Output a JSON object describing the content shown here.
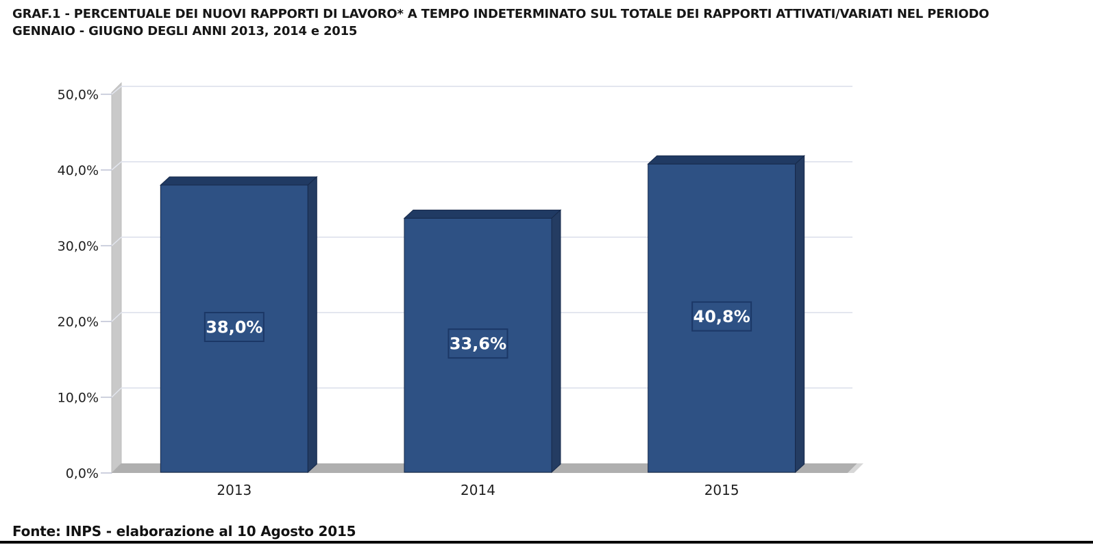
{
  "title": {
    "line1": "GRAF.1 - PERCENTUALE DEI NUOVI RAPPORTI DI LAVORO* A TEMPO INDETERMINATO SUL TOTALE DEI RAPPORTI ATTIVATI/VARIATI NEL PERIODO",
    "line2": "GENNAIO - GIUGNO  DEGLI ANNI 2013, 2014 e 2015"
  },
  "footer": {
    "source": "Fonte: INPS - elaborazione al 10 Agosto 2015"
  },
  "chart_data": {
    "type": "bar",
    "style": "3d-column",
    "categories": [
      "2013",
      "2014",
      "2015"
    ],
    "values": [
      38.0,
      33.6,
      40.8
    ],
    "value_labels": [
      "38,0%",
      "33,6%",
      "40,8%"
    ],
    "ylim": [
      0,
      50
    ],
    "yticks": [
      0,
      10,
      20,
      30,
      40,
      50
    ],
    "ytick_labels": [
      "0,0%",
      "10,0%",
      "20,0%",
      "30,0%",
      "40,0%",
      "50,0%"
    ],
    "grid": true,
    "legend": "none",
    "xlabel": "",
    "ylabel": "",
    "colors": {
      "bar_front": "#2E5184",
      "bar_top": "#203A63",
      "bar_side": "#243C62",
      "bar_outline": "#16294A",
      "label_box_fill": "#2E5184",
      "label_box_border": "#1B3766",
      "label_text": "#FFFFFF",
      "wall": "#C9C9C9",
      "wall_edge": "#BDBDBD",
      "floor": "#AFAFAF",
      "gridline": "#E3E6EF",
      "tick": "#BCC0D2",
      "axis_text": "#1F1F1F"
    }
  }
}
